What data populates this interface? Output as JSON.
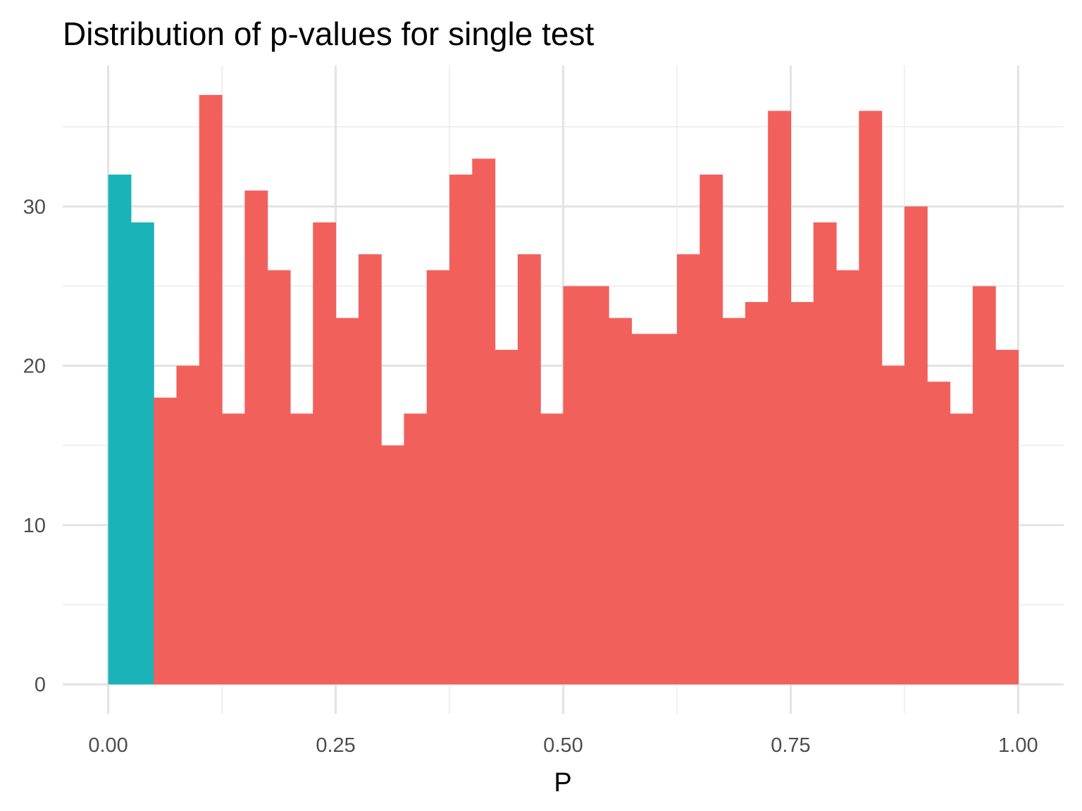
{
  "chart_data": {
    "type": "bar",
    "title": "Distribution of p-values for single test",
    "xlabel": "P",
    "ylabel": "",
    "xlim": [
      -0.05,
      1.05
    ],
    "ylim": [
      -1.85,
      38.85
    ],
    "x_ticks": [
      0.0,
      0.25,
      0.5,
      0.75,
      1.0
    ],
    "x_tick_labels": [
      "0.00",
      "0.25",
      "0.50",
      "0.75",
      "1.00"
    ],
    "y_ticks": [
      0,
      10,
      20,
      30
    ],
    "y_tick_labels": [
      "0",
      "10",
      "20",
      "30"
    ],
    "grid": true,
    "bin_width": 0.025,
    "bin_start": 0.0,
    "series": [
      {
        "color": "#1AB4B8",
        "bins": [
          [
            0.0,
            0.025,
            32
          ],
          [
            0.025,
            0.05,
            29
          ]
        ]
      },
      {
        "color": "#F2605C",
        "bins": [
          [
            0.05,
            0.075,
            18
          ],
          [
            0.075,
            0.1,
            20
          ],
          [
            0.1,
            0.125,
            37
          ],
          [
            0.125,
            0.15,
            17
          ],
          [
            0.15,
            0.175,
            31
          ],
          [
            0.175,
            0.2,
            26
          ],
          [
            0.2,
            0.225,
            17
          ],
          [
            0.225,
            0.25,
            29
          ],
          [
            0.25,
            0.275,
            23
          ],
          [
            0.275,
            0.3,
            27
          ],
          [
            0.3,
            0.325,
            15
          ],
          [
            0.325,
            0.35,
            17
          ],
          [
            0.35,
            0.375,
            26
          ],
          [
            0.375,
            0.4,
            32
          ],
          [
            0.4,
            0.425,
            33
          ],
          [
            0.425,
            0.45,
            21
          ],
          [
            0.45,
            0.475,
            27
          ],
          [
            0.475,
            0.5,
            17
          ],
          [
            0.5,
            0.525,
            25
          ],
          [
            0.525,
            0.55,
            25
          ],
          [
            0.55,
            0.575,
            23
          ],
          [
            0.575,
            0.6,
            22
          ],
          [
            0.6,
            0.625,
            22
          ],
          [
            0.625,
            0.65,
            27
          ],
          [
            0.65,
            0.675,
            32
          ],
          [
            0.675,
            0.7,
            23
          ],
          [
            0.7,
            0.725,
            24
          ],
          [
            0.725,
            0.75,
            36
          ],
          [
            0.75,
            0.775,
            24
          ],
          [
            0.775,
            0.8,
            29
          ],
          [
            0.8,
            0.825,
            26
          ],
          [
            0.825,
            0.85,
            36
          ],
          [
            0.85,
            0.875,
            20
          ],
          [
            0.875,
            0.9,
            30
          ],
          [
            0.9,
            0.925,
            19
          ],
          [
            0.925,
            0.95,
            17
          ],
          [
            0.95,
            0.975,
            25
          ],
          [
            0.975,
            1.0,
            21
          ]
        ]
      }
    ]
  }
}
